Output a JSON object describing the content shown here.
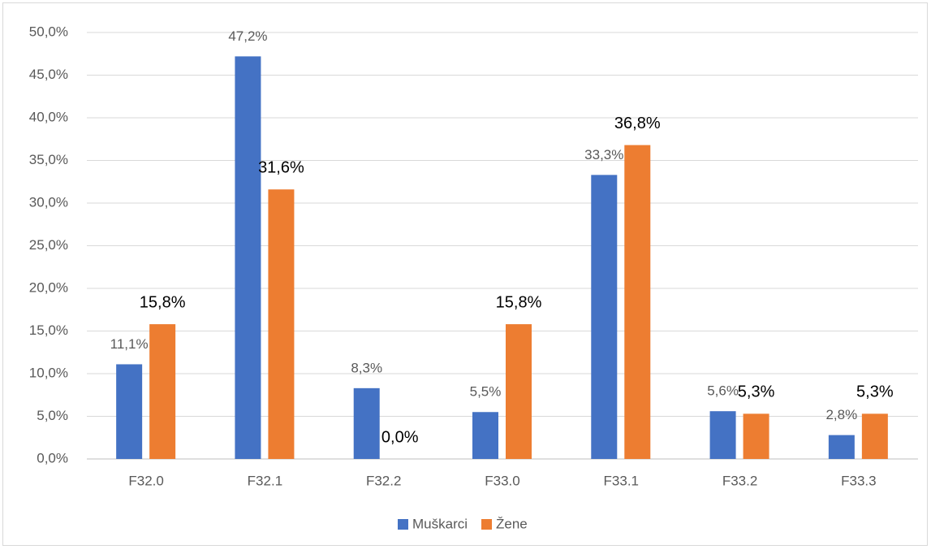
{
  "chart_data": {
    "type": "bar",
    "categories": [
      "F32.0",
      "F32.1",
      "F32.2",
      "F33.0",
      "F33.1",
      "F33.2",
      "F33.3"
    ],
    "series": [
      {
        "name": "Muškarci",
        "color": "#4472c4",
        "values": [
          11.1,
          47.2,
          8.3,
          5.5,
          33.3,
          5.6,
          2.8
        ],
        "value_labels": [
          "11,1%",
          "47,2%",
          "8,3%",
          "5,5%",
          "33,3%",
          "5,6%",
          "2,8%"
        ]
      },
      {
        "name": "Žene",
        "color": "#ed7d31",
        "values": [
          15.8,
          31.6,
          0.0,
          15.8,
          36.8,
          5.3,
          5.3
        ],
        "value_labels": [
          "15,8%",
          "31,6%",
          "0,0%",
          "15,8%",
          "36,8%",
          "5,3%",
          "5,3%"
        ]
      }
    ],
    "ylim": [
      0,
      50
    ],
    "yticks": [
      {
        "value": 0,
        "label": "0,0%"
      },
      {
        "value": 5,
        "label": "5,0%"
      },
      {
        "value": 10,
        "label": "10,0%"
      },
      {
        "value": 15,
        "label": "15,0%"
      },
      {
        "value": 20,
        "label": "20,0%"
      },
      {
        "value": 25,
        "label": "25,0%"
      },
      {
        "value": 30,
        "label": "30,0%"
      },
      {
        "value": 35,
        "label": "35,0%"
      },
      {
        "value": 40,
        "label": "40,0%"
      },
      {
        "value": 45,
        "label": "45,0%"
      },
      {
        "value": 50,
        "label": "50,0%"
      }
    ],
    "grid": true,
    "legend": "bottom"
  }
}
